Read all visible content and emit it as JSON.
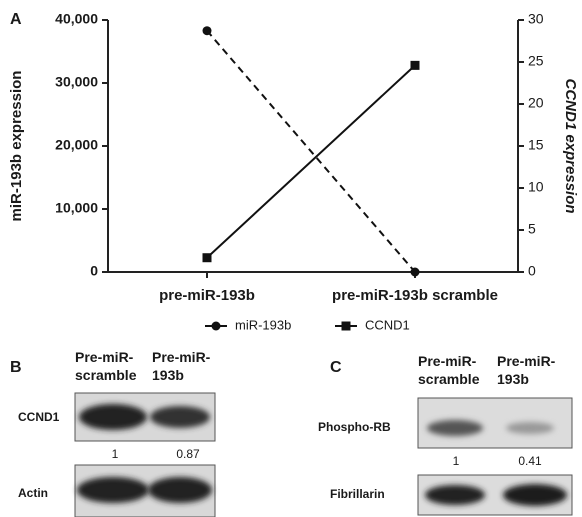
{
  "chart_data": {
    "type": "line",
    "panel_label": "A",
    "categories": [
      "pre-miR-193b",
      "pre-miR-193b scramble"
    ],
    "ylabel": "miR-193b expression",
    "y2label": "CCND1 expression",
    "ylim": [
      0,
      40000
    ],
    "yticks": [
      0,
      {
        "value": 10000,
        "label": "10,000"
      },
      {
        "value": 20000,
        "label": "20,000"
      },
      {
        "value": 30000,
        "label": "30,000"
      },
      {
        "value": 40000,
        "label": "40,000"
      }
    ],
    "y2lim": [
      0,
      30
    ],
    "y2ticks": [
      0,
      5,
      10,
      15,
      20,
      25,
      30
    ],
    "series": [
      {
        "name": "miR-193b",
        "color": "#111111",
        "values": [
          38300,
          0
        ],
        "linestyle": "dashed",
        "marker": "circle"
      },
      {
        "name": "CCND1",
        "color": "#111111",
        "values": [
          1.7,
          24.6
        ],
        "axis": "y2",
        "linestyle": "solid",
        "marker": "square"
      }
    ]
  },
  "panel_b": {
    "label": "B",
    "columns": [
      [
        "Pre-miR-",
        "scramble"
      ],
      [
        "Pre-miR-",
        "193b"
      ]
    ],
    "rows": [
      "CCND1",
      "Actin"
    ],
    "quantification": [
      1,
      0.87
    ]
  },
  "panel_c": {
    "label": "C",
    "columns": [
      [
        "Pre-miR-",
        "scramble"
      ],
      [
        "Pre-miR-",
        "193b"
      ]
    ],
    "rows": [
      "Phospho-RB",
      "Fibrillarin"
    ],
    "quantification": [
      1,
      0.41
    ]
  }
}
